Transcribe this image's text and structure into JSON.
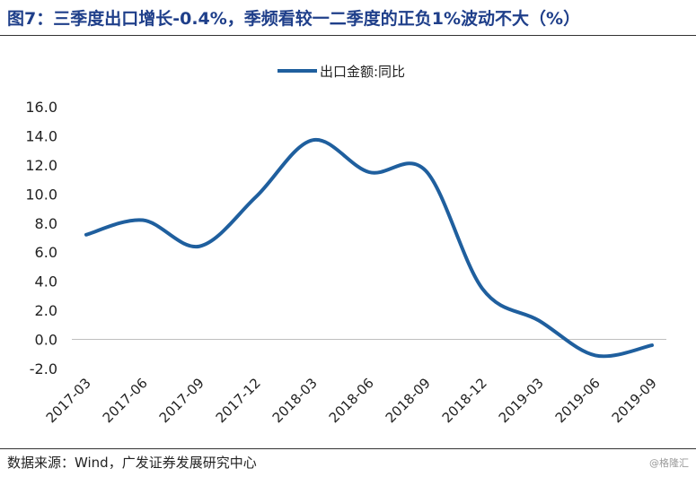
{
  "header": {
    "title": "图7：三季度出口增长-0.4%，季频看较一二季度的正负1%波动不大（%）"
  },
  "footer": {
    "source": "数据来源：Wind，广发证券发展研究中心",
    "watermark": "@格隆汇"
  },
  "chart_data": {
    "type": "line",
    "title": "",
    "xlabel": "",
    "ylabel": "",
    "categories": [
      "2017-03",
      "2017-06",
      "2017-09",
      "2017-12",
      "2018-03",
      "2018-06",
      "2018-09",
      "2018-12",
      "2019-03",
      "2019-06",
      "2019-09"
    ],
    "x_ticks": [
      "2017-03",
      "2017-06",
      "2017-09",
      "2017-12",
      "2018-03",
      "2018-06",
      "2018-09",
      "2018-12",
      "2019-03",
      "2019-06",
      "2019-09"
    ],
    "y_ticks": [
      "16.0",
      "14.0",
      "12.0",
      "10.0",
      "8.0",
      "6.0",
      "4.0",
      "2.0",
      "0.0",
      "-2.0"
    ],
    "ylim": [
      -2,
      16
    ],
    "grid": false,
    "legend_position": "top-center",
    "series": [
      {
        "name": "出口金额:同比",
        "color": "#1f5f9e",
        "values": [
          7.2,
          8.2,
          6.4,
          9.8,
          13.7,
          11.5,
          11.6,
          3.5,
          1.3,
          -1.1,
          -0.4
        ]
      }
    ]
  }
}
